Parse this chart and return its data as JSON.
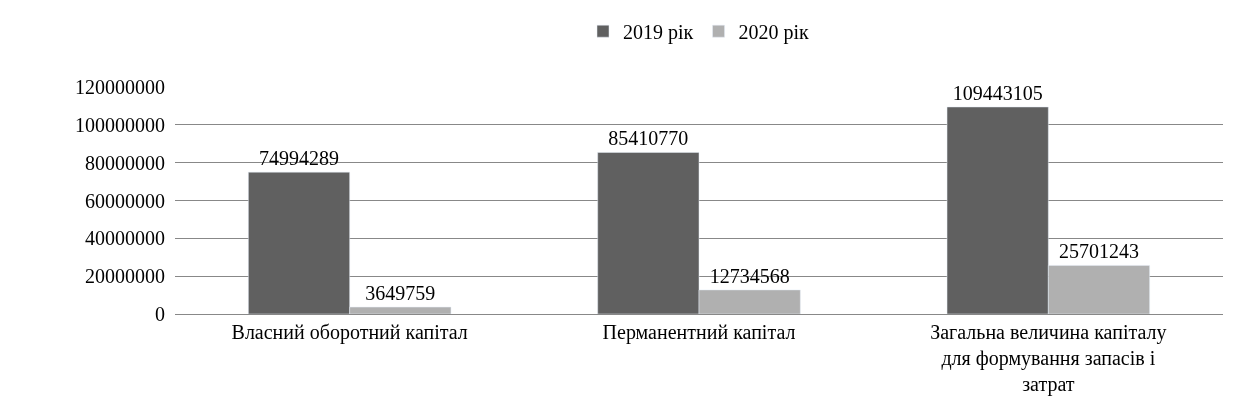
{
  "chart_data": {
    "type": "bar",
    "categories": [
      "Власний оборотний капітал",
      "Перманентний капітал",
      "Загальна величина капіталу для формування запасів і затрат"
    ],
    "series": [
      {
        "name": "2019 рік",
        "color": "#606060",
        "values": [
          74994289,
          85410770,
          109443105
        ]
      },
      {
        "name": "2020 рік",
        "color": "#b0b0b0",
        "values": [
          3649759,
          12734568,
          25701243
        ]
      }
    ],
    "ylim": [
      0,
      120000000
    ],
    "yticks": [
      0,
      20000000,
      40000000,
      60000000,
      80000000,
      100000000,
      120000000
    ],
    "grid": "y",
    "legend": "top",
    "data_labels": true
  }
}
